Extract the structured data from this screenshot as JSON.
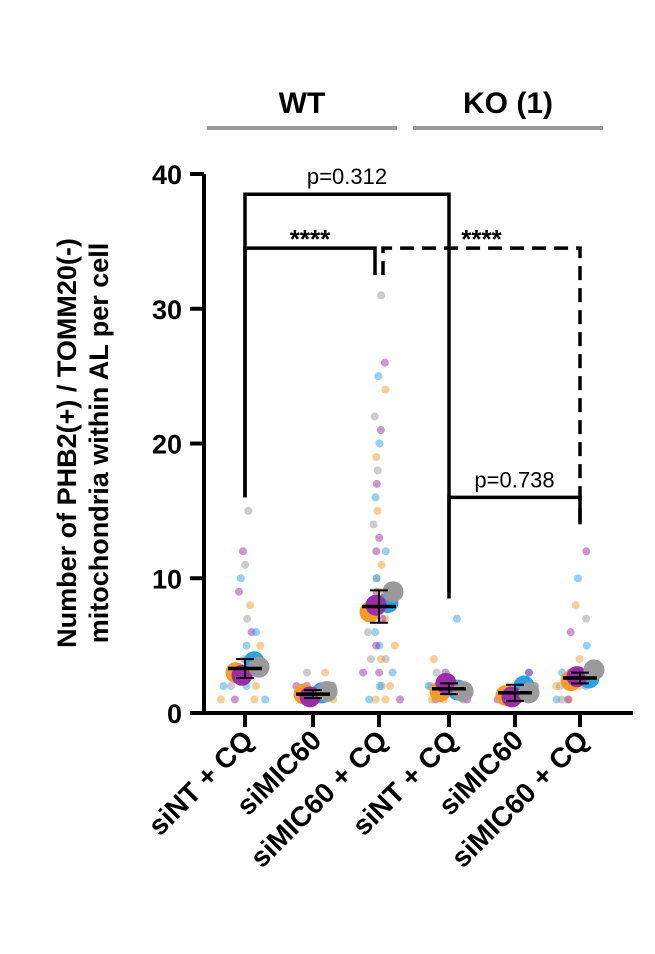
{
  "chart_data": {
    "type": "scatter",
    "subtype": "superplot-dot-with-mean-sem",
    "groups": [
      {
        "label": "WT",
        "categories": [
          0,
          1,
          2
        ]
      },
      {
        "label": "KO (1)",
        "categories": [
          3,
          4,
          5
        ]
      }
    ],
    "categories": [
      "siNT + CQ",
      "siMIC60",
      "siMIC60 + CQ",
      "siNT + CQ",
      "siMIC60",
      "siMIC60 + CQ"
    ],
    "ylabel_lines": [
      "Number of PHB2(+) / TOMM20(-)",
      "mitochondria within AL per cell"
    ],
    "ylim": [
      0,
      40
    ],
    "yticks": [
      0,
      10,
      20,
      30,
      40
    ],
    "replicate_colors": [
      "#f39c27",
      "#29a3e8",
      "#9b2ea8",
      "#9a9a9a"
    ],
    "replicate_means": [
      [
        3.0,
        3.8,
        2.8,
        3.4
      ],
      [
        1.4,
        1.5,
        1.2,
        1.6
      ],
      [
        7.5,
        8.2,
        8.0,
        9.0
      ],
      [
        1.6,
        1.7,
        2.2,
        1.6
      ],
      [
        1.3,
        2.0,
        1.2,
        1.5
      ],
      [
        2.4,
        2.6,
        2.7,
        3.2
      ]
    ],
    "mean": [
      3.3,
      1.4,
      7.9,
      1.8,
      1.5,
      2.6
    ],
    "sem": [
      0.7,
      0.3,
      1.2,
      0.4,
      0.6,
      0.4
    ],
    "comparisons": [
      {
        "from": 0,
        "to": 3,
        "label": "p=0.312",
        "y": 38.5,
        "style": "solid"
      },
      {
        "from": 0,
        "to": 2,
        "label": "****",
        "y": 34.5,
        "style": "solid"
      },
      {
        "from": 2,
        "to": 5,
        "label": "****",
        "y": 34.5,
        "style": "dashed"
      },
      {
        "from": 3,
        "to": 5,
        "label": "p=0.738",
        "y": 16.0,
        "style": "solid"
      }
    ],
    "grid": false,
    "legend": "none"
  }
}
